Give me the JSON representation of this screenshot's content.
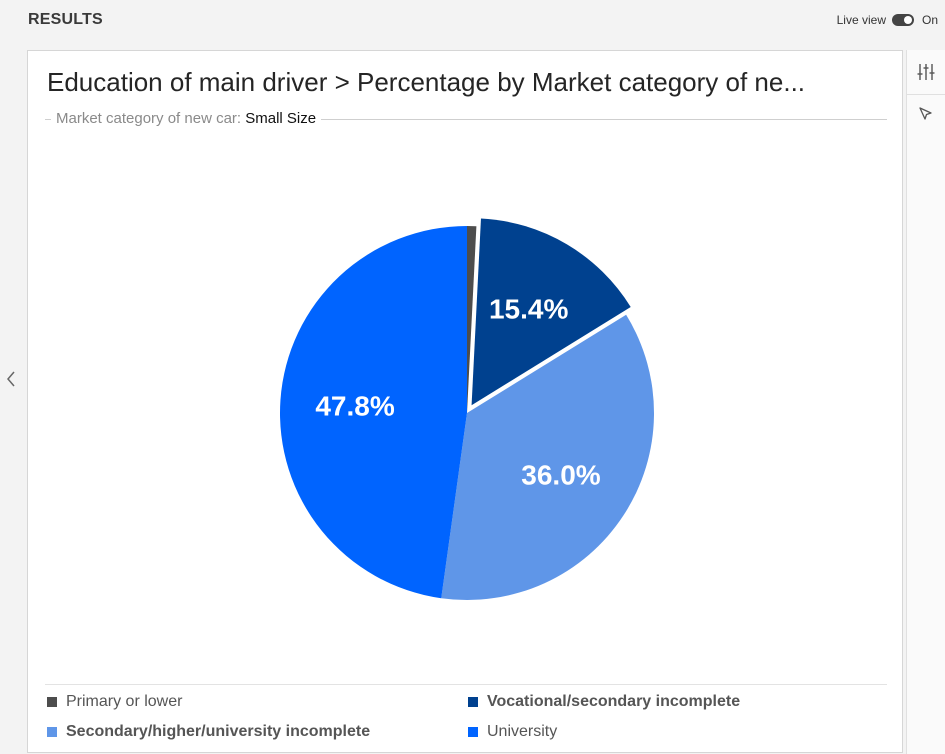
{
  "header": {
    "title": "RESULTS",
    "live_view_label": "Live view",
    "live_view_state": "On"
  },
  "colors": {
    "primary_or_lower": "#4d4d4d",
    "vocational": "#00418f",
    "secondary": "#5f96e8",
    "university": "#0064ff"
  },
  "chart_data": {
    "type": "pie",
    "title": "Education of main driver > Percentage by Market category of ne...",
    "filter": {
      "label": "Market category of new car:",
      "value": "Small Size"
    },
    "slices": [
      {
        "label": "Primary or lower",
        "value": 0.8,
        "data_label": "",
        "color": "#4d4d4d",
        "exploded": false
      },
      {
        "label": "Vocational/secondary incomplete",
        "value": 15.4,
        "data_label": "15.4%",
        "color": "#00418f",
        "exploded": true
      },
      {
        "label": "Secondary/higher/university incomplete",
        "value": 36.0,
        "data_label": "36.0%",
        "color": "#5f96e8",
        "exploded": false
      },
      {
        "label": "University",
        "value": 47.8,
        "data_label": "47.8%",
        "color": "#0064ff",
        "exploded": false
      }
    ],
    "legend": [
      {
        "label": "Primary or lower",
        "color": "#4d4d4d",
        "bold": false
      },
      {
        "label": "Vocational/secondary incomplete",
        "color": "#00418f",
        "bold": true
      },
      {
        "label": "Secondary/higher/university incomplete",
        "color": "#5f96e8",
        "bold": true
      },
      {
        "label": "University",
        "color": "#0064ff",
        "bold": false
      }
    ],
    "legend_position": "bottom"
  },
  "sidebar": {
    "icons": [
      "sliders-icon",
      "cursor-select-icon"
    ]
  },
  "navigation": {
    "left_icon": "chevron-left-icon"
  }
}
